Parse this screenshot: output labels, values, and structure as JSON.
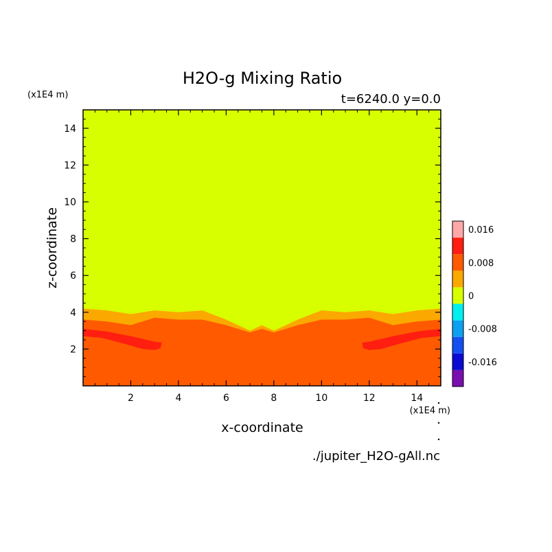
{
  "chart_data": {
    "type": "heatmap",
    "title": "H2O-g Mixing Ratio",
    "subtitle": "t=6240.0 y=0.0",
    "xlabel": "x-coordinate",
    "ylabel": "z-coordinate",
    "x_unit": "(x1E4 m)",
    "y_unit": "(x1E4 m)",
    "source_file": "./jupiter_H2O-gAll.nc",
    "xlim": [
      0,
      15
    ],
    "ylim": [
      0,
      15
    ],
    "x_ticks": [
      2,
      4,
      6,
      8,
      10,
      12,
      14
    ],
    "y_ticks": [
      2,
      4,
      6,
      8,
      10,
      12,
      14
    ],
    "grid": false,
    "legend_position": "right",
    "colorbar": {
      "levels": [
        {
          "range": [
            -0.02,
            -0.016
          ],
          "color": "#7a0fb0"
        },
        {
          "range": [
            -0.016,
            -0.012
          ],
          "color": "#0a0ad2"
        },
        {
          "range": [
            -0.012,
            -0.008
          ],
          "color": "#1450f0"
        },
        {
          "range": [
            -0.008,
            -0.004
          ],
          "color": "#0ea0f0"
        },
        {
          "range": [
            -0.004,
            0
          ],
          "color": "#00f0f0"
        },
        {
          "range": [
            0,
            0.004
          ],
          "color": "#d8ff00"
        },
        {
          "range": [
            0.004,
            0.008
          ],
          "color": "#fba800"
        },
        {
          "range": [
            0.008,
            0.012
          ],
          "color": "#ff5a00"
        },
        {
          "range": [
            0.012,
            0.016
          ],
          "color": "#ff1e10"
        },
        {
          "range": [
            0.016,
            0.02
          ],
          "color": "#ffa8a8"
        }
      ],
      "tick_labels": [
        "0.016",
        "0.008",
        "0",
        "-0.008",
        "-0.016"
      ]
    },
    "regions": [
      {
        "level": "0 to 0.004",
        "description": "z above ~4.2"
      },
      {
        "level": "0.004 to 0.008",
        "boundary_z": [
          [
            0,
            4.2
          ],
          [
            1,
            4.1
          ],
          [
            2,
            3.9
          ],
          [
            3,
            4.1
          ],
          [
            4,
            4.0
          ],
          [
            5,
            4.1
          ],
          [
            6,
            3.6
          ],
          [
            7,
            3.0
          ],
          [
            7.5,
            3.3
          ],
          [
            8,
            3.0
          ],
          [
            9,
            3.6
          ],
          [
            10,
            4.1
          ],
          [
            11,
            4.0
          ],
          [
            12,
            4.1
          ],
          [
            13,
            3.9
          ],
          [
            14,
            4.1
          ],
          [
            15,
            4.2
          ]
        ]
      },
      {
        "level": "0.008 to 0.012",
        "boundary_z": [
          [
            0,
            3.6
          ],
          [
            1,
            3.5
          ],
          [
            2,
            3.3
          ],
          [
            3,
            3.7
          ],
          [
            4,
            3.6
          ],
          [
            5,
            3.6
          ],
          [
            6,
            3.3
          ],
          [
            7,
            2.9
          ],
          [
            7.5,
            3.1
          ],
          [
            8,
            2.9
          ],
          [
            9,
            3.3
          ],
          [
            10,
            3.6
          ],
          [
            11,
            3.6
          ],
          [
            12,
            3.7
          ],
          [
            13,
            3.3
          ],
          [
            14,
            3.5
          ],
          [
            15,
            3.6
          ]
        ]
      },
      {
        "level": "0.012 to 0.016",
        "description": "thin band z 2.2–3.1 for x 0–3.4 and 11.7–15"
      }
    ]
  }
}
